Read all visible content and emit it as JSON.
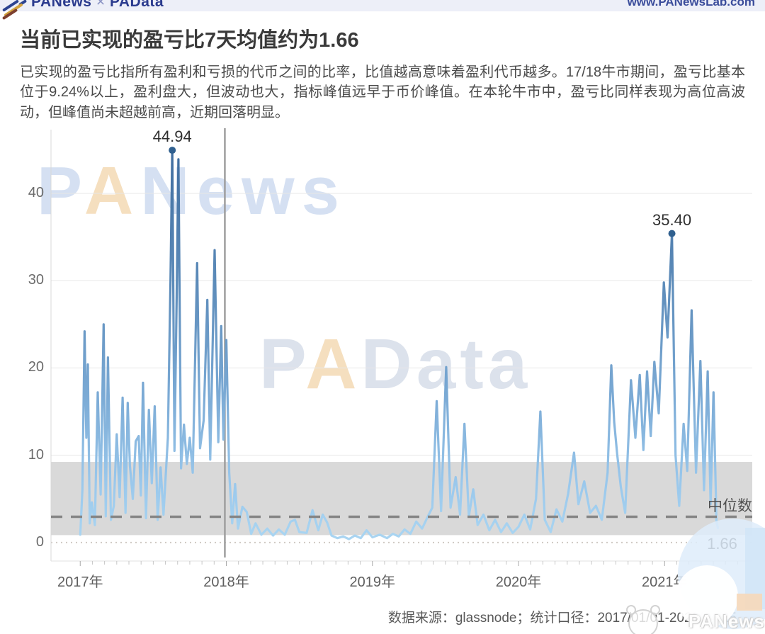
{
  "header": {
    "logo_text": "PANews",
    "logo_sep": "×",
    "logo_text2": "PAData",
    "url": "www.PANewsLab.com"
  },
  "title": "当前已实现的盈亏比7天均值约为1.66",
  "description": "已实现的盈亏比指所有盈利和亏损的代币之间的比率，比值越高意味着盈利代币越多。17/18牛市期间，盈亏比基本位于9.24%以上，盈利盘大，但波动也大，指标峰值远早于币价峰值。在本轮牛市中，盈亏比同样表现为高位高波动，但峰值尚未超越前高，近期回落明显。",
  "watermarks": {
    "left_p": "P",
    "left_a": "A",
    "left_rest": "News",
    "center_p": "P",
    "center_a": "A",
    "center_rest": "Data",
    "corner": "PANews"
  },
  "footer": {
    "source_text": "数据来源：glassnode；统计口径：2017/01/01-2021/04/25"
  },
  "chart_data": {
    "type": "line",
    "title": "已实现盈亏比7天均值",
    "xlabel": "",
    "ylabel": "",
    "xlim": [
      2016.8,
      2021.6
    ],
    "ylim": [
      -2.2,
      47.3
    ],
    "grid": "horizontal",
    "x_ticks": [
      {
        "v": 2017,
        "label": "2017年"
      },
      {
        "v": 2018,
        "label": "2018年"
      },
      {
        "v": 2019,
        "label": "2019年"
      },
      {
        "v": 2020,
        "label": "2020年"
      },
      {
        "v": 2021,
        "label": "2021年"
      }
    ],
    "y_ticks": [
      0,
      10,
      20,
      30,
      40
    ],
    "band": {
      "from": 0.85,
      "to": 9.24,
      "color": "#d9d9d9"
    },
    "median_line": {
      "value": 2.95,
      "style": "dashed",
      "color": "#858585",
      "label": "中位数"
    },
    "zero_line": {
      "value": 0,
      "style": "dotted",
      "color": "#cfc9c3"
    },
    "event_line": {
      "x": 2017.99,
      "color": "#9e9e9e"
    },
    "colors": {
      "line_top": "#3f6c9e",
      "line_mid": "#7aa9d4",
      "line_bottom": "#abd6f2",
      "marker": "#30608f"
    },
    "annotations": {
      "peak1": {
        "label": "44.94",
        "x": 2017.63,
        "y": 44.94
      },
      "peak2": {
        "label": "35.40",
        "x": 2021.05,
        "y": 35.4
      },
      "current": {
        "label": "1.66",
        "x": 2021.36,
        "y": 0
      }
    },
    "series": [
      {
        "name": "已实现盈亏比7天均值",
        "points": [
          [
            2017.0,
            0.9
          ],
          [
            2017.015,
            6.0
          ],
          [
            2017.03,
            24.2
          ],
          [
            2017.042,
            12.0
          ],
          [
            2017.052,
            20.4
          ],
          [
            2017.065,
            2.2
          ],
          [
            2017.08,
            4.6
          ],
          [
            2017.1,
            2.0
          ],
          [
            2017.12,
            17.2
          ],
          [
            2017.14,
            5.5
          ],
          [
            2017.16,
            25.0
          ],
          [
            2017.175,
            3.0
          ],
          [
            2017.19,
            21.2
          ],
          [
            2017.21,
            2.6
          ],
          [
            2017.23,
            4.2
          ],
          [
            2017.25,
            12.4
          ],
          [
            2017.27,
            5.2
          ],
          [
            2017.29,
            16.6
          ],
          [
            2017.31,
            3.4
          ],
          [
            2017.325,
            16.0
          ],
          [
            2017.34,
            8.8
          ],
          [
            2017.36,
            5.0
          ],
          [
            2017.38,
            11.6
          ],
          [
            2017.4,
            12.2
          ],
          [
            2017.415,
            5.4
          ],
          [
            2017.43,
            18.3
          ],
          [
            2017.45,
            2.8
          ],
          [
            2017.47,
            15.2
          ],
          [
            2017.49,
            6.8
          ],
          [
            2017.51,
            15.6
          ],
          [
            2017.53,
            2.6
          ],
          [
            2017.55,
            8.6
          ],
          [
            2017.57,
            3.2
          ],
          [
            2017.6,
            12.0
          ],
          [
            2017.618,
            30.0
          ],
          [
            2017.63,
            44.94
          ],
          [
            2017.645,
            10.5
          ],
          [
            2017.66,
            28.0
          ],
          [
            2017.672,
            43.9
          ],
          [
            2017.69,
            8.5
          ],
          [
            2017.71,
            13.5
          ],
          [
            2017.73,
            9.0
          ],
          [
            2017.75,
            12.0
          ],
          [
            2017.77,
            8.0
          ],
          [
            2017.8,
            32.0
          ],
          [
            2017.82,
            10.8
          ],
          [
            2017.845,
            14.0
          ],
          [
            2017.87,
            27.8
          ],
          [
            2017.89,
            9.5
          ],
          [
            2017.92,
            33.5
          ],
          [
            2017.945,
            11.5
          ],
          [
            2017.965,
            24.8
          ],
          [
            2017.98,
            11.8
          ],
          [
            2018.0,
            23.2
          ],
          [
            2018.02,
            8.0
          ],
          [
            2018.04,
            2.2
          ],
          [
            2018.06,
            6.7
          ],
          [
            2018.08,
            1.6
          ],
          [
            2018.11,
            4.1
          ],
          [
            2018.14,
            3.5
          ],
          [
            2018.17,
            1.0
          ],
          [
            2018.2,
            2.2
          ],
          [
            2018.24,
            0.9
          ],
          [
            2018.28,
            1.6
          ],
          [
            2018.32,
            0.8
          ],
          [
            2018.36,
            1.5
          ],
          [
            2018.4,
            0.9
          ],
          [
            2018.44,
            2.4
          ],
          [
            2018.47,
            2.6
          ],
          [
            2018.5,
            1.2
          ],
          [
            2018.55,
            1.1
          ],
          [
            2018.59,
            3.7
          ],
          [
            2018.63,
            1.4
          ],
          [
            2018.66,
            3.2
          ],
          [
            2018.69,
            2.3
          ],
          [
            2018.72,
            0.8
          ],
          [
            2018.76,
            0.5
          ],
          [
            2018.8,
            0.7
          ],
          [
            2018.84,
            0.4
          ],
          [
            2018.88,
            0.8
          ],
          [
            2018.92,
            0.5
          ],
          [
            2018.96,
            1.4
          ],
          [
            2019.0,
            0.6
          ],
          [
            2019.05,
            0.9
          ],
          [
            2019.1,
            0.5
          ],
          [
            2019.14,
            1.0
          ],
          [
            2019.18,
            0.7
          ],
          [
            2019.22,
            1.5
          ],
          [
            2019.26,
            1.0
          ],
          [
            2019.3,
            2.4
          ],
          [
            2019.34,
            1.6
          ],
          [
            2019.38,
            3.0
          ],
          [
            2019.41,
            4.0
          ],
          [
            2019.44,
            16.2
          ],
          [
            2019.47,
            3.6
          ],
          [
            2019.505,
            20.1
          ],
          [
            2019.535,
            4.0
          ],
          [
            2019.57,
            7.5
          ],
          [
            2019.6,
            3.2
          ],
          [
            2019.63,
            13.6
          ],
          [
            2019.66,
            3.0
          ],
          [
            2019.69,
            6.1
          ],
          [
            2019.72,
            2.0
          ],
          [
            2019.76,
            3.2
          ],
          [
            2019.8,
            1.4
          ],
          [
            2019.84,
            2.6
          ],
          [
            2019.88,
            1.2
          ],
          [
            2019.92,
            2.2
          ],
          [
            2019.96,
            1.1
          ],
          [
            2020.0,
            1.8
          ],
          [
            2020.04,
            3.2
          ],
          [
            2020.08,
            1.5
          ],
          [
            2020.12,
            5.0
          ],
          [
            2020.15,
            15.0
          ],
          [
            2020.18,
            2.6
          ],
          [
            2020.22,
            1.2
          ],
          [
            2020.26,
            3.8
          ],
          [
            2020.3,
            2.4
          ],
          [
            2020.34,
            5.6
          ],
          [
            2020.38,
            10.3
          ],
          [
            2020.41,
            4.4
          ],
          [
            2020.45,
            7.0
          ],
          [
            2020.49,
            3.4
          ],
          [
            2020.53,
            4.2
          ],
          [
            2020.57,
            2.6
          ],
          [
            2020.61,
            8.0
          ],
          [
            2020.635,
            20.3
          ],
          [
            2020.655,
            13.8
          ],
          [
            2020.675,
            10.2
          ],
          [
            2020.7,
            6.4
          ],
          [
            2020.73,
            3.4
          ],
          [
            2020.77,
            18.6
          ],
          [
            2020.8,
            12.0
          ],
          [
            2020.83,
            19.2
          ],
          [
            2020.855,
            10.6
          ],
          [
            2020.88,
            19.6
          ],
          [
            2020.905,
            12.2
          ],
          [
            2020.93,
            20.7
          ],
          [
            2020.96,
            14.8
          ],
          [
            2020.995,
            29.8
          ],
          [
            2021.02,
            23.5
          ],
          [
            2021.05,
            35.4
          ],
          [
            2021.075,
            10.0
          ],
          [
            2021.1,
            4.2
          ],
          [
            2021.13,
            13.6
          ],
          [
            2021.155,
            8.2
          ],
          [
            2021.185,
            26.6
          ],
          [
            2021.215,
            8.0
          ],
          [
            2021.245,
            20.8
          ],
          [
            2021.27,
            6.0
          ],
          [
            2021.295,
            19.6
          ],
          [
            2021.315,
            4.4
          ],
          [
            2021.335,
            17.2
          ],
          [
            2021.355,
            2.4
          ],
          [
            2021.365,
            1.66
          ]
        ]
      }
    ]
  }
}
